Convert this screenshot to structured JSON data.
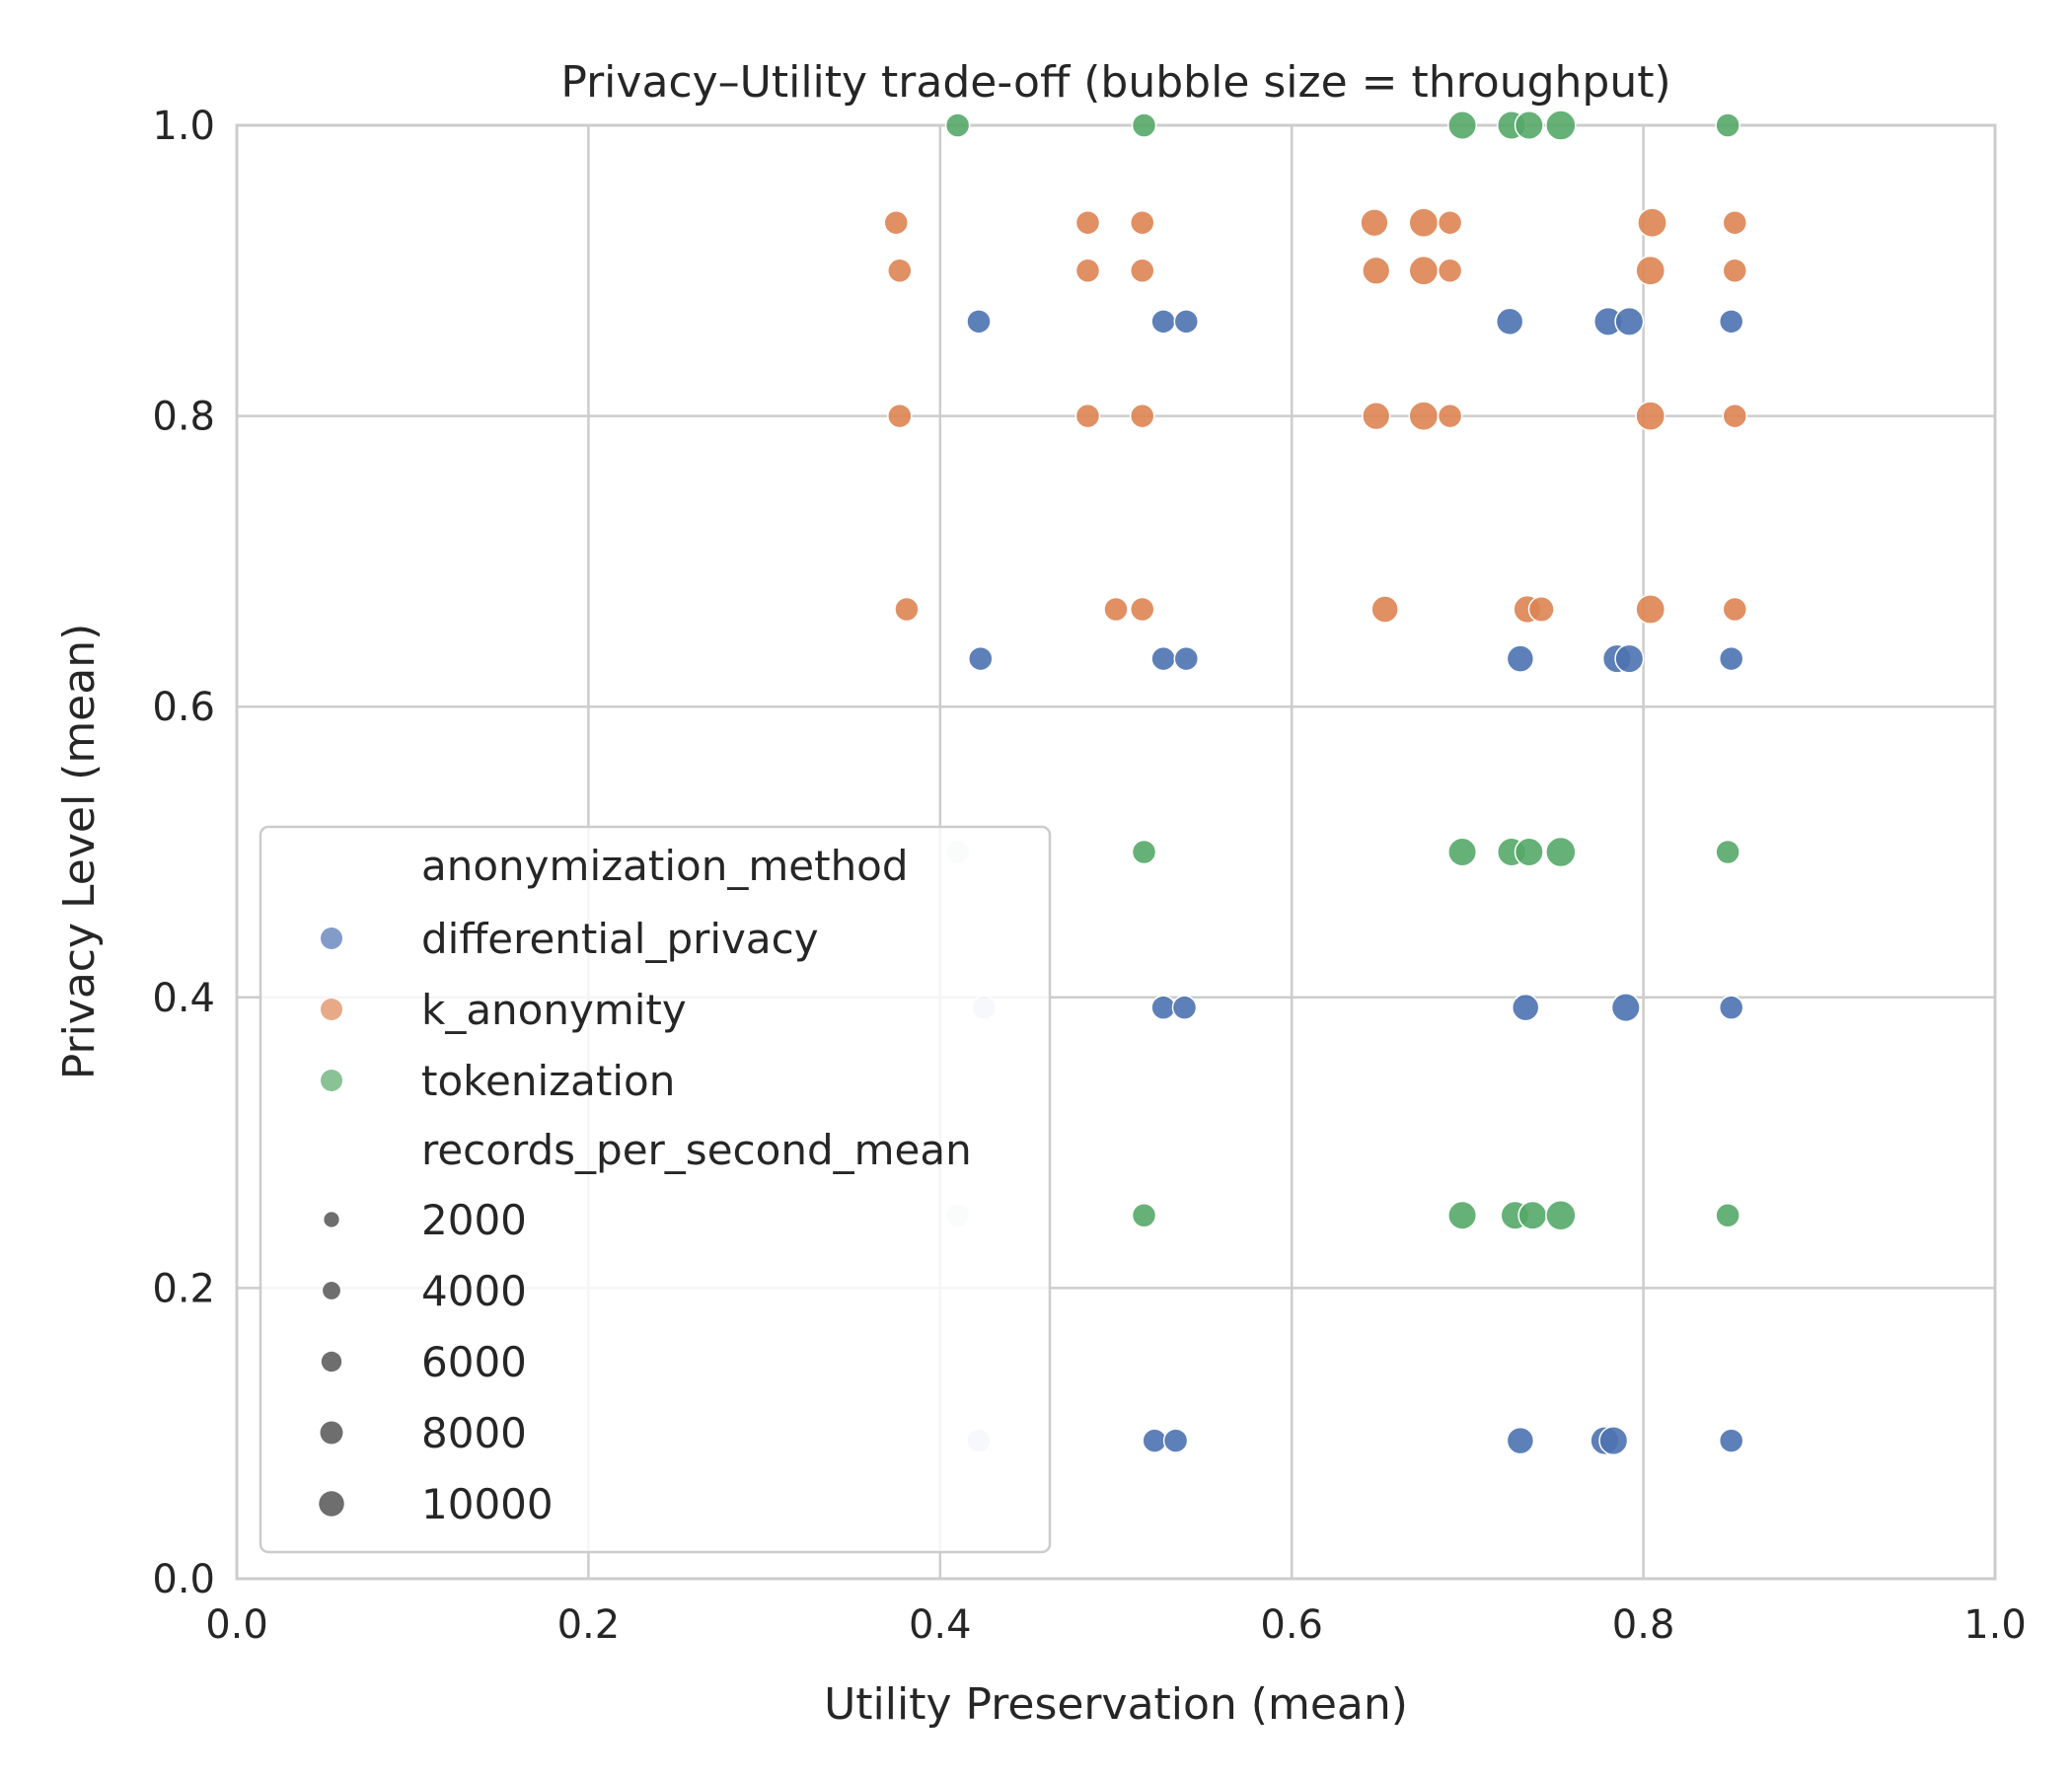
{
  "chart_data": {
    "type": "scatter",
    "title": "Privacy–Utility trade-off (bubble size = throughput)",
    "xlabel": "Utility Preservation (mean)",
    "ylabel": "Privacy Level (mean)",
    "xlim": [
      0,
      1
    ],
    "ylim": [
      0,
      1
    ],
    "x_ticks": [
      "0.0",
      "0.2",
      "0.4",
      "0.6",
      "0.8",
      "1.0"
    ],
    "y_ticks": [
      "0.0",
      "0.2",
      "0.4",
      "0.6",
      "0.8",
      "1.0"
    ],
    "grid": true,
    "legend": {
      "position": "lower-left",
      "hue_title": "anonymization_method",
      "size_title": "records_per_second_mean",
      "size_levels": [
        {
          "label": "2000",
          "value": 2000
        },
        {
          "label": "4000",
          "value": 4000
        },
        {
          "label": "6000",
          "value": 6000
        },
        {
          "label": "8000",
          "value": 8000
        },
        {
          "label": "10000",
          "value": 10000
        }
      ]
    },
    "series": [
      {
        "name": "differential_privacy",
        "color": "#4c72b0",
        "points": [
          {
            "x": 0.422,
            "y": 0.865,
            "size": 6000
          },
          {
            "x": 0.527,
            "y": 0.865,
            "size": 6000
          },
          {
            "x": 0.54,
            "y": 0.865,
            "size": 6000
          },
          {
            "x": 0.724,
            "y": 0.865,
            "size": 8000
          },
          {
            "x": 0.78,
            "y": 0.865,
            "size": 9000
          },
          {
            "x": 0.792,
            "y": 0.865,
            "size": 9000
          },
          {
            "x": 0.85,
            "y": 0.865,
            "size": 6000
          },
          {
            "x": 0.423,
            "y": 0.633,
            "size": 6000
          },
          {
            "x": 0.527,
            "y": 0.633,
            "size": 6000
          },
          {
            "x": 0.54,
            "y": 0.633,
            "size": 6000
          },
          {
            "x": 0.73,
            "y": 0.633,
            "size": 8000
          },
          {
            "x": 0.785,
            "y": 0.633,
            "size": 9000
          },
          {
            "x": 0.792,
            "y": 0.633,
            "size": 9000
          },
          {
            "x": 0.85,
            "y": 0.633,
            "size": 6000
          },
          {
            "x": 0.425,
            "y": 0.393,
            "size": 6000,
            "alpha": 0.3
          },
          {
            "x": 0.527,
            "y": 0.393,
            "size": 6000
          },
          {
            "x": 0.539,
            "y": 0.393,
            "size": 6000
          },
          {
            "x": 0.733,
            "y": 0.393,
            "size": 8000
          },
          {
            "x": 0.79,
            "y": 0.393,
            "size": 9000
          },
          {
            "x": 0.85,
            "y": 0.393,
            "size": 6000
          },
          {
            "x": 0.422,
            "y": 0.095,
            "size": 6000,
            "alpha": 0.3
          },
          {
            "x": 0.522,
            "y": 0.095,
            "size": 6000
          },
          {
            "x": 0.534,
            "y": 0.095,
            "size": 6000
          },
          {
            "x": 0.73,
            "y": 0.095,
            "size": 8000
          },
          {
            "x": 0.778,
            "y": 0.095,
            "size": 9000
          },
          {
            "x": 0.783,
            "y": 0.095,
            "size": 9000
          },
          {
            "x": 0.85,
            "y": 0.095,
            "size": 6000
          }
        ]
      },
      {
        "name": "k_anonymity",
        "color": "#dd8452",
        "points": [
          {
            "x": 0.375,
            "y": 0.933,
            "size": 6000
          },
          {
            "x": 0.484,
            "y": 0.933,
            "size": 6000
          },
          {
            "x": 0.515,
            "y": 0.933,
            "size": 6000
          },
          {
            "x": 0.647,
            "y": 0.933,
            "size": 8500
          },
          {
            "x": 0.675,
            "y": 0.933,
            "size": 9500
          },
          {
            "x": 0.69,
            "y": 0.933,
            "size": 6000
          },
          {
            "x": 0.805,
            "y": 0.933,
            "size": 9500
          },
          {
            "x": 0.852,
            "y": 0.933,
            "size": 6000
          },
          {
            "x": 0.377,
            "y": 0.9,
            "size": 6000
          },
          {
            "x": 0.484,
            "y": 0.9,
            "size": 6000
          },
          {
            "x": 0.515,
            "y": 0.9,
            "size": 6000
          },
          {
            "x": 0.648,
            "y": 0.9,
            "size": 8500
          },
          {
            "x": 0.675,
            "y": 0.9,
            "size": 9500
          },
          {
            "x": 0.69,
            "y": 0.9,
            "size": 6000
          },
          {
            "x": 0.804,
            "y": 0.9,
            "size": 9500
          },
          {
            "x": 0.852,
            "y": 0.9,
            "size": 6000
          },
          {
            "x": 0.377,
            "y": 0.8,
            "size": 6000
          },
          {
            "x": 0.484,
            "y": 0.8,
            "size": 6000
          },
          {
            "x": 0.515,
            "y": 0.8,
            "size": 6000
          },
          {
            "x": 0.648,
            "y": 0.8,
            "size": 8500
          },
          {
            "x": 0.675,
            "y": 0.8,
            "size": 9500
          },
          {
            "x": 0.69,
            "y": 0.8,
            "size": 6000
          },
          {
            "x": 0.804,
            "y": 0.8,
            "size": 9500
          },
          {
            "x": 0.852,
            "y": 0.8,
            "size": 6000
          },
          {
            "x": 0.381,
            "y": 0.667,
            "size": 6000
          },
          {
            "x": 0.5,
            "y": 0.667,
            "size": 6000
          },
          {
            "x": 0.515,
            "y": 0.667,
            "size": 6000
          },
          {
            "x": 0.653,
            "y": 0.667,
            "size": 8000
          },
          {
            "x": 0.734,
            "y": 0.667,
            "size": 8500
          },
          {
            "x": 0.742,
            "y": 0.667,
            "size": 7000
          },
          {
            "x": 0.804,
            "y": 0.667,
            "size": 9500
          },
          {
            "x": 0.852,
            "y": 0.667,
            "size": 6000
          }
        ]
      },
      {
        "name": "tokenization",
        "color": "#55a868",
        "points": [
          {
            "x": 0.41,
            "y": 1.0,
            "size": 6000
          },
          {
            "x": 0.516,
            "y": 1.0,
            "size": 6000
          },
          {
            "x": 0.697,
            "y": 1.0,
            "size": 9000
          },
          {
            "x": 0.725,
            "y": 1.0,
            "size": 9000
          },
          {
            "x": 0.735,
            "y": 1.0,
            "size": 9000
          },
          {
            "x": 0.753,
            "y": 1.0,
            "size": 10000
          },
          {
            "x": 0.848,
            "y": 1.0,
            "size": 6000
          },
          {
            "x": 0.41,
            "y": 0.5,
            "size": 6000,
            "alpha": 0.2
          },
          {
            "x": 0.516,
            "y": 0.5,
            "size": 6000
          },
          {
            "x": 0.697,
            "y": 0.5,
            "size": 9000
          },
          {
            "x": 0.725,
            "y": 0.5,
            "size": 9000
          },
          {
            "x": 0.735,
            "y": 0.5,
            "size": 9000
          },
          {
            "x": 0.753,
            "y": 0.5,
            "size": 10000
          },
          {
            "x": 0.848,
            "y": 0.5,
            "size": 6000
          },
          {
            "x": 0.41,
            "y": 0.25,
            "size": 6000,
            "alpha": 0.2
          },
          {
            "x": 0.516,
            "y": 0.25,
            "size": 6000
          },
          {
            "x": 0.697,
            "y": 0.25,
            "size": 9000
          },
          {
            "x": 0.727,
            "y": 0.25,
            "size": 9000
          },
          {
            "x": 0.737,
            "y": 0.25,
            "size": 9000
          },
          {
            "x": 0.753,
            "y": 0.25,
            "size": 10000
          },
          {
            "x": 0.848,
            "y": 0.25,
            "size": 6000
          }
        ]
      }
    ]
  }
}
